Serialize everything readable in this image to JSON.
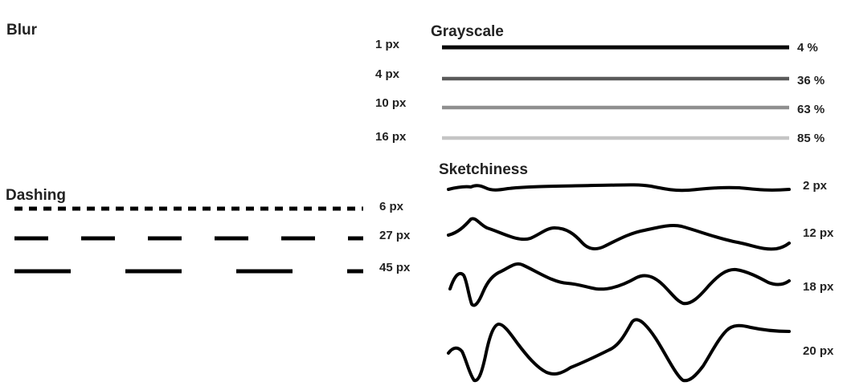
{
  "blur": {
    "title": "Blur",
    "items": [
      {
        "label": "1 px",
        "blur": 1
      },
      {
        "label": "4 px",
        "blur": 4
      },
      {
        "label": "10 px",
        "blur": 10
      },
      {
        "label": "16 px",
        "blur": 16
      }
    ]
  },
  "dashing": {
    "title": "Dashing",
    "items": [
      {
        "label": "6 px",
        "dash": 6
      },
      {
        "label": "27 px",
        "dash": 27
      },
      {
        "label": "45 px",
        "dash": 45
      }
    ]
  },
  "grayscale": {
    "title": "Grayscale",
    "items": [
      {
        "label": "4 %",
        "percent": 4
      },
      {
        "label": "36 %",
        "percent": 36
      },
      {
        "label": "63 %",
        "percent": 63
      },
      {
        "label": "85 %",
        "percent": 85
      }
    ]
  },
  "sketchiness": {
    "title": "Sketchiness",
    "items": [
      {
        "label": "2 px",
        "amount": 2
      },
      {
        "label": "12 px",
        "amount": 12
      },
      {
        "label": "18 px",
        "amount": 18
      },
      {
        "label": "20 px",
        "amount": 20
      }
    ]
  }
}
